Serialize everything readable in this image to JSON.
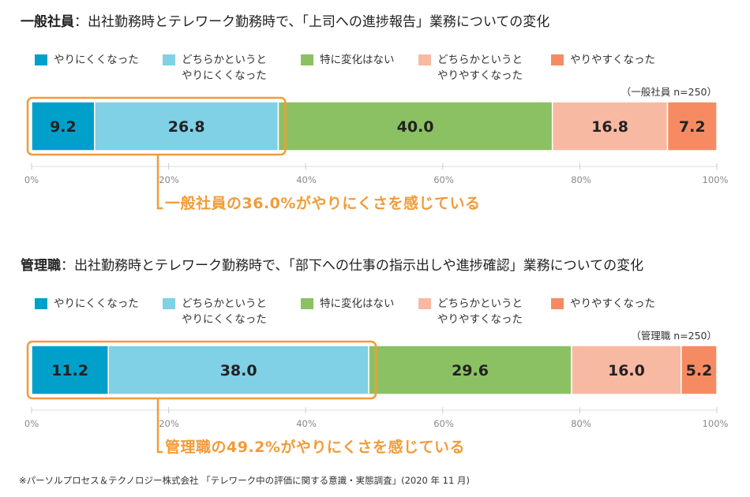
{
  "colors": {
    "very_hard": "#00A0CB",
    "somewhat_hard": "#80D0E6",
    "no_change": "#8CC163",
    "somewhat_easy": "#F8B9A3",
    "very_easy": "#F68B63",
    "highlight": "#F29B38",
    "axis_tick": "#999999"
  },
  "legend": [
    {
      "key": "very_hard",
      "label": "やりにくくなった"
    },
    {
      "key": "somewhat_hard",
      "label": "どちらかというと\nやりにくくなった"
    },
    {
      "key": "no_change",
      "label": "特に変化はない"
    },
    {
      "key": "somewhat_easy",
      "label": "どちらかというと\nやりやすくなった"
    },
    {
      "key": "very_easy",
      "label": "やりやすくなった"
    }
  ],
  "chart_data": [
    {
      "type": "bar",
      "orientation": "horizontal-stacked-100",
      "title_strong": "一般社員",
      "title_rest": "：出社勤務時とテレワーク勤務時で、「上司への進捗報告」業務についての変化",
      "sample_note": "（一般社員 n=250）",
      "series": [
        {
          "name": "やりにくくなった",
          "key": "very_hard",
          "values": [
            9.2
          ],
          "label": "9.2"
        },
        {
          "name": "どちらかというとやりにくくなった",
          "key": "somewhat_hard",
          "values": [
            26.8
          ],
          "label": "26.8"
        },
        {
          "name": "特に変化はない",
          "key": "no_change",
          "values": [
            40.0
          ],
          "label": "40.0"
        },
        {
          "name": "どちらかというとやりやすくなった",
          "key": "somewhat_easy",
          "values": [
            16.8
          ],
          "label": "16.8"
        },
        {
          "name": "やりやすくなった",
          "key": "very_easy",
          "values": [
            7.2
          ],
          "label": "7.2"
        }
      ],
      "xlim": [
        0,
        100
      ],
      "ticks": [
        "0%",
        "20%",
        "40%",
        "60%",
        "80%",
        "100%"
      ],
      "highlight_segments": 2,
      "callout": "一般社員の36.0%がやりにくさを感じている"
    },
    {
      "type": "bar",
      "orientation": "horizontal-stacked-100",
      "title_strong": "管理職",
      "title_rest": "：出社勤務時とテレワーク勤務時で、「部下への仕事の指示出しや進捗確認」業務についての変化",
      "sample_note": "（管理職 n=250）",
      "series": [
        {
          "name": "やりにくくなった",
          "key": "very_hard",
          "values": [
            11.2
          ],
          "label": "11.2"
        },
        {
          "name": "どちらかというとやりにくくなった",
          "key": "somewhat_hard",
          "values": [
            38.0
          ],
          "label": "38.0"
        },
        {
          "name": "特に変化はない",
          "key": "no_change",
          "values": [
            29.6
          ],
          "label": "29.6"
        },
        {
          "name": "どちらかというとやりやすくなった",
          "key": "somewhat_easy",
          "values": [
            16.0
          ],
          "label": "16.0"
        },
        {
          "name": "やりやすくなった",
          "key": "very_easy",
          "values": [
            5.2
          ],
          "label": "5.2"
        }
      ],
      "xlim": [
        0,
        100
      ],
      "ticks": [
        "0%",
        "20%",
        "40%",
        "60%",
        "80%",
        "100%"
      ],
      "highlight_segments": 2,
      "callout": "管理職の49.2%がやりにくさを感じている"
    }
  ],
  "footnote": "※パーソルプロセス＆テクノロジー株式会社 「テレワーク中の評価に関する意識・実態調査」(2020 年 11 月)"
}
